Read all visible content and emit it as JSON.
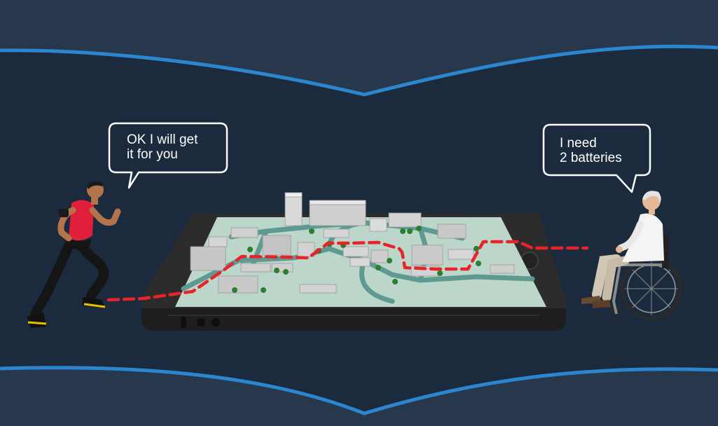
{
  "scene": {
    "runner_speech": "OK I will get\nit for you",
    "wheelchair_user_speech": "I need\n2 batteries"
  },
  "colors": {
    "background_dark": "#1b2a3c",
    "band": "#27384d",
    "wave_line": "#2a86cf",
    "route": "#e8232a",
    "map_ground": "#bcd6c9",
    "map_paths": "#5f9a92",
    "tablet_body": "#2c2c2c"
  },
  "icons": [
    "runner-figure",
    "wheelchair-user-figure",
    "tablet-map",
    "route-path"
  ]
}
